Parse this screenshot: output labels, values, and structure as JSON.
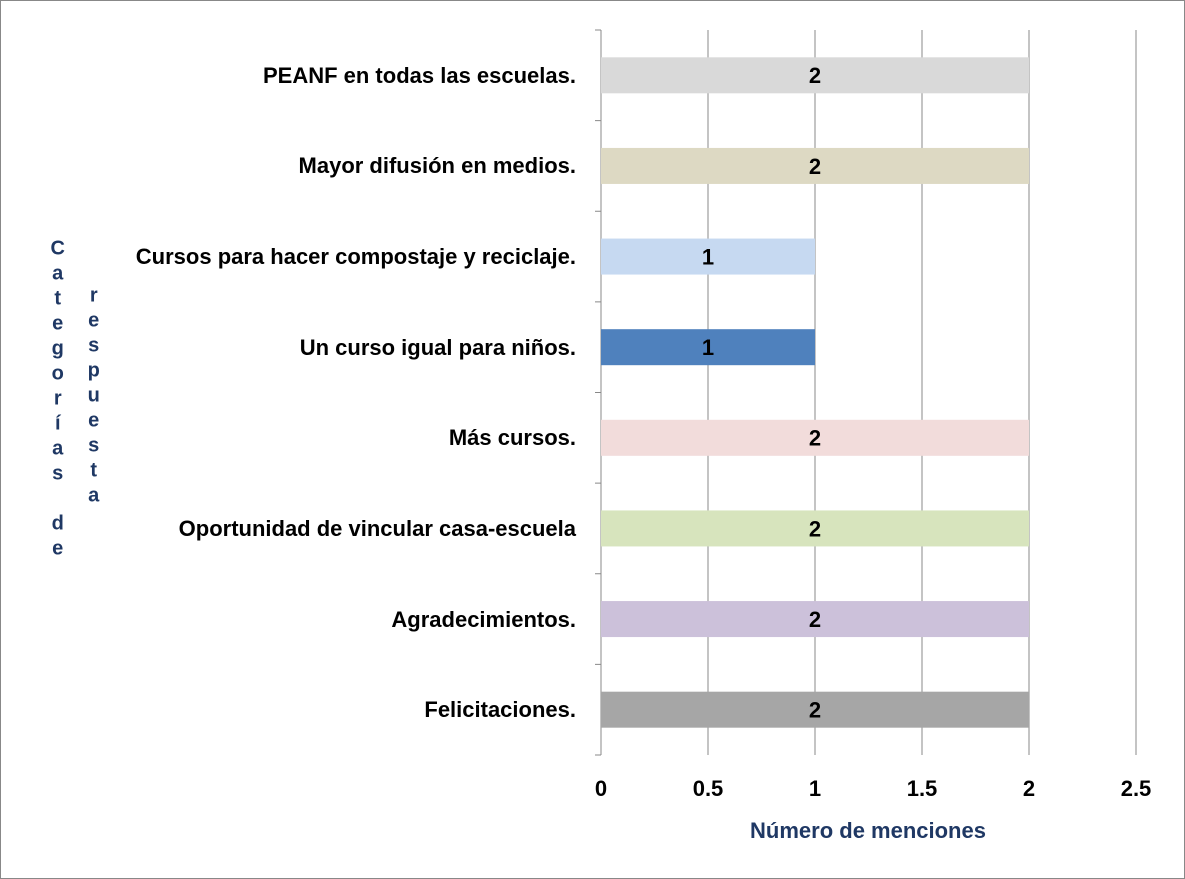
{
  "chart_data": {
    "type": "bar",
    "orientation": "horizontal",
    "categories": [
      "PEANF en todas las escuelas.",
      "Mayor difusión en medios.",
      "Cursos para hacer compostaje y reciclaje.",
      "Un curso igual para niños.",
      "Más cursos.",
      "Oportunidad de vincular casa-escuela",
      "Agradecimientos.",
      "Felicitaciones."
    ],
    "values": [
      2,
      2,
      1,
      1,
      2,
      2,
      2,
      2
    ],
    "colors": [
      "#d9d9d9",
      "#ddd9c3",
      "#c6d9f1",
      "#4f81bd",
      "#f2dcdb",
      "#d7e4bd",
      "#ccc1da",
      "#a6a6a6"
    ],
    "xlim": [
      0,
      2.5
    ],
    "xticks": [
      0,
      0.5,
      1,
      1.5,
      2,
      2.5
    ],
    "grid": true,
    "x_label": "Número de menciones",
    "y_label": [
      "Categorías de",
      "respuesta"
    ]
  }
}
